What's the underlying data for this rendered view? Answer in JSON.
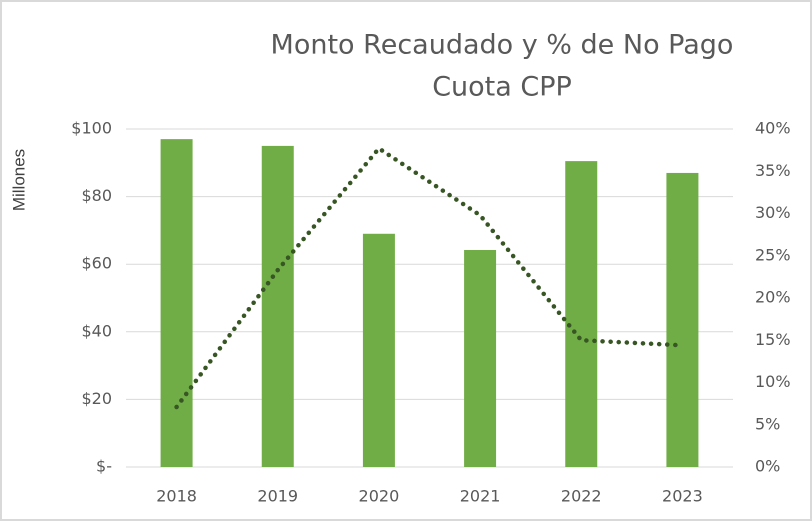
{
  "chart_data": {
    "type": "bar-line",
    "title": [
      "Monto Recaudado y % de No Pago",
      "Cuota CPP"
    ],
    "y_axis_label": "Millones",
    "categories": [
      "2018",
      "2019",
      "2020",
      "2021",
      "2022",
      "2023"
    ],
    "series": [
      {
        "type": "bar",
        "color": "#70ad47",
        "values": [
          97,
          95,
          69,
          64.2,
          90.5,
          87
        ]
      },
      {
        "type": "line",
        "axis": "y2",
        "color": "#375623",
        "line_style": "dotted",
        "values": [
          7.1,
          23.3,
          37.7,
          29.8,
          15,
          14.4
        ]
      }
    ],
    "ylim": [
      0,
      100
    ],
    "yticks": [
      {
        "value": 0,
        "label": "$-"
      },
      {
        "value": 20,
        "label": "$20"
      },
      {
        "value": 40,
        "label": "$40"
      },
      {
        "value": 60,
        "label": "$60"
      },
      {
        "value": 80,
        "label": "$80"
      },
      {
        "value": 100,
        "label": "$100"
      }
    ],
    "y2lim": [
      0,
      40
    ],
    "y2ticks": [
      {
        "value": 0,
        "label": "0%"
      },
      {
        "value": 5,
        "label": "5%"
      },
      {
        "value": 10,
        "label": "10%"
      },
      {
        "value": 15,
        "label": "15%"
      },
      {
        "value": 20,
        "label": "20%"
      },
      {
        "value": 25,
        "label": "25%"
      },
      {
        "value": 30,
        "label": "30%"
      },
      {
        "value": 35,
        "label": "35%"
      },
      {
        "value": 40,
        "label": "40%"
      }
    ],
    "grid": true
  }
}
